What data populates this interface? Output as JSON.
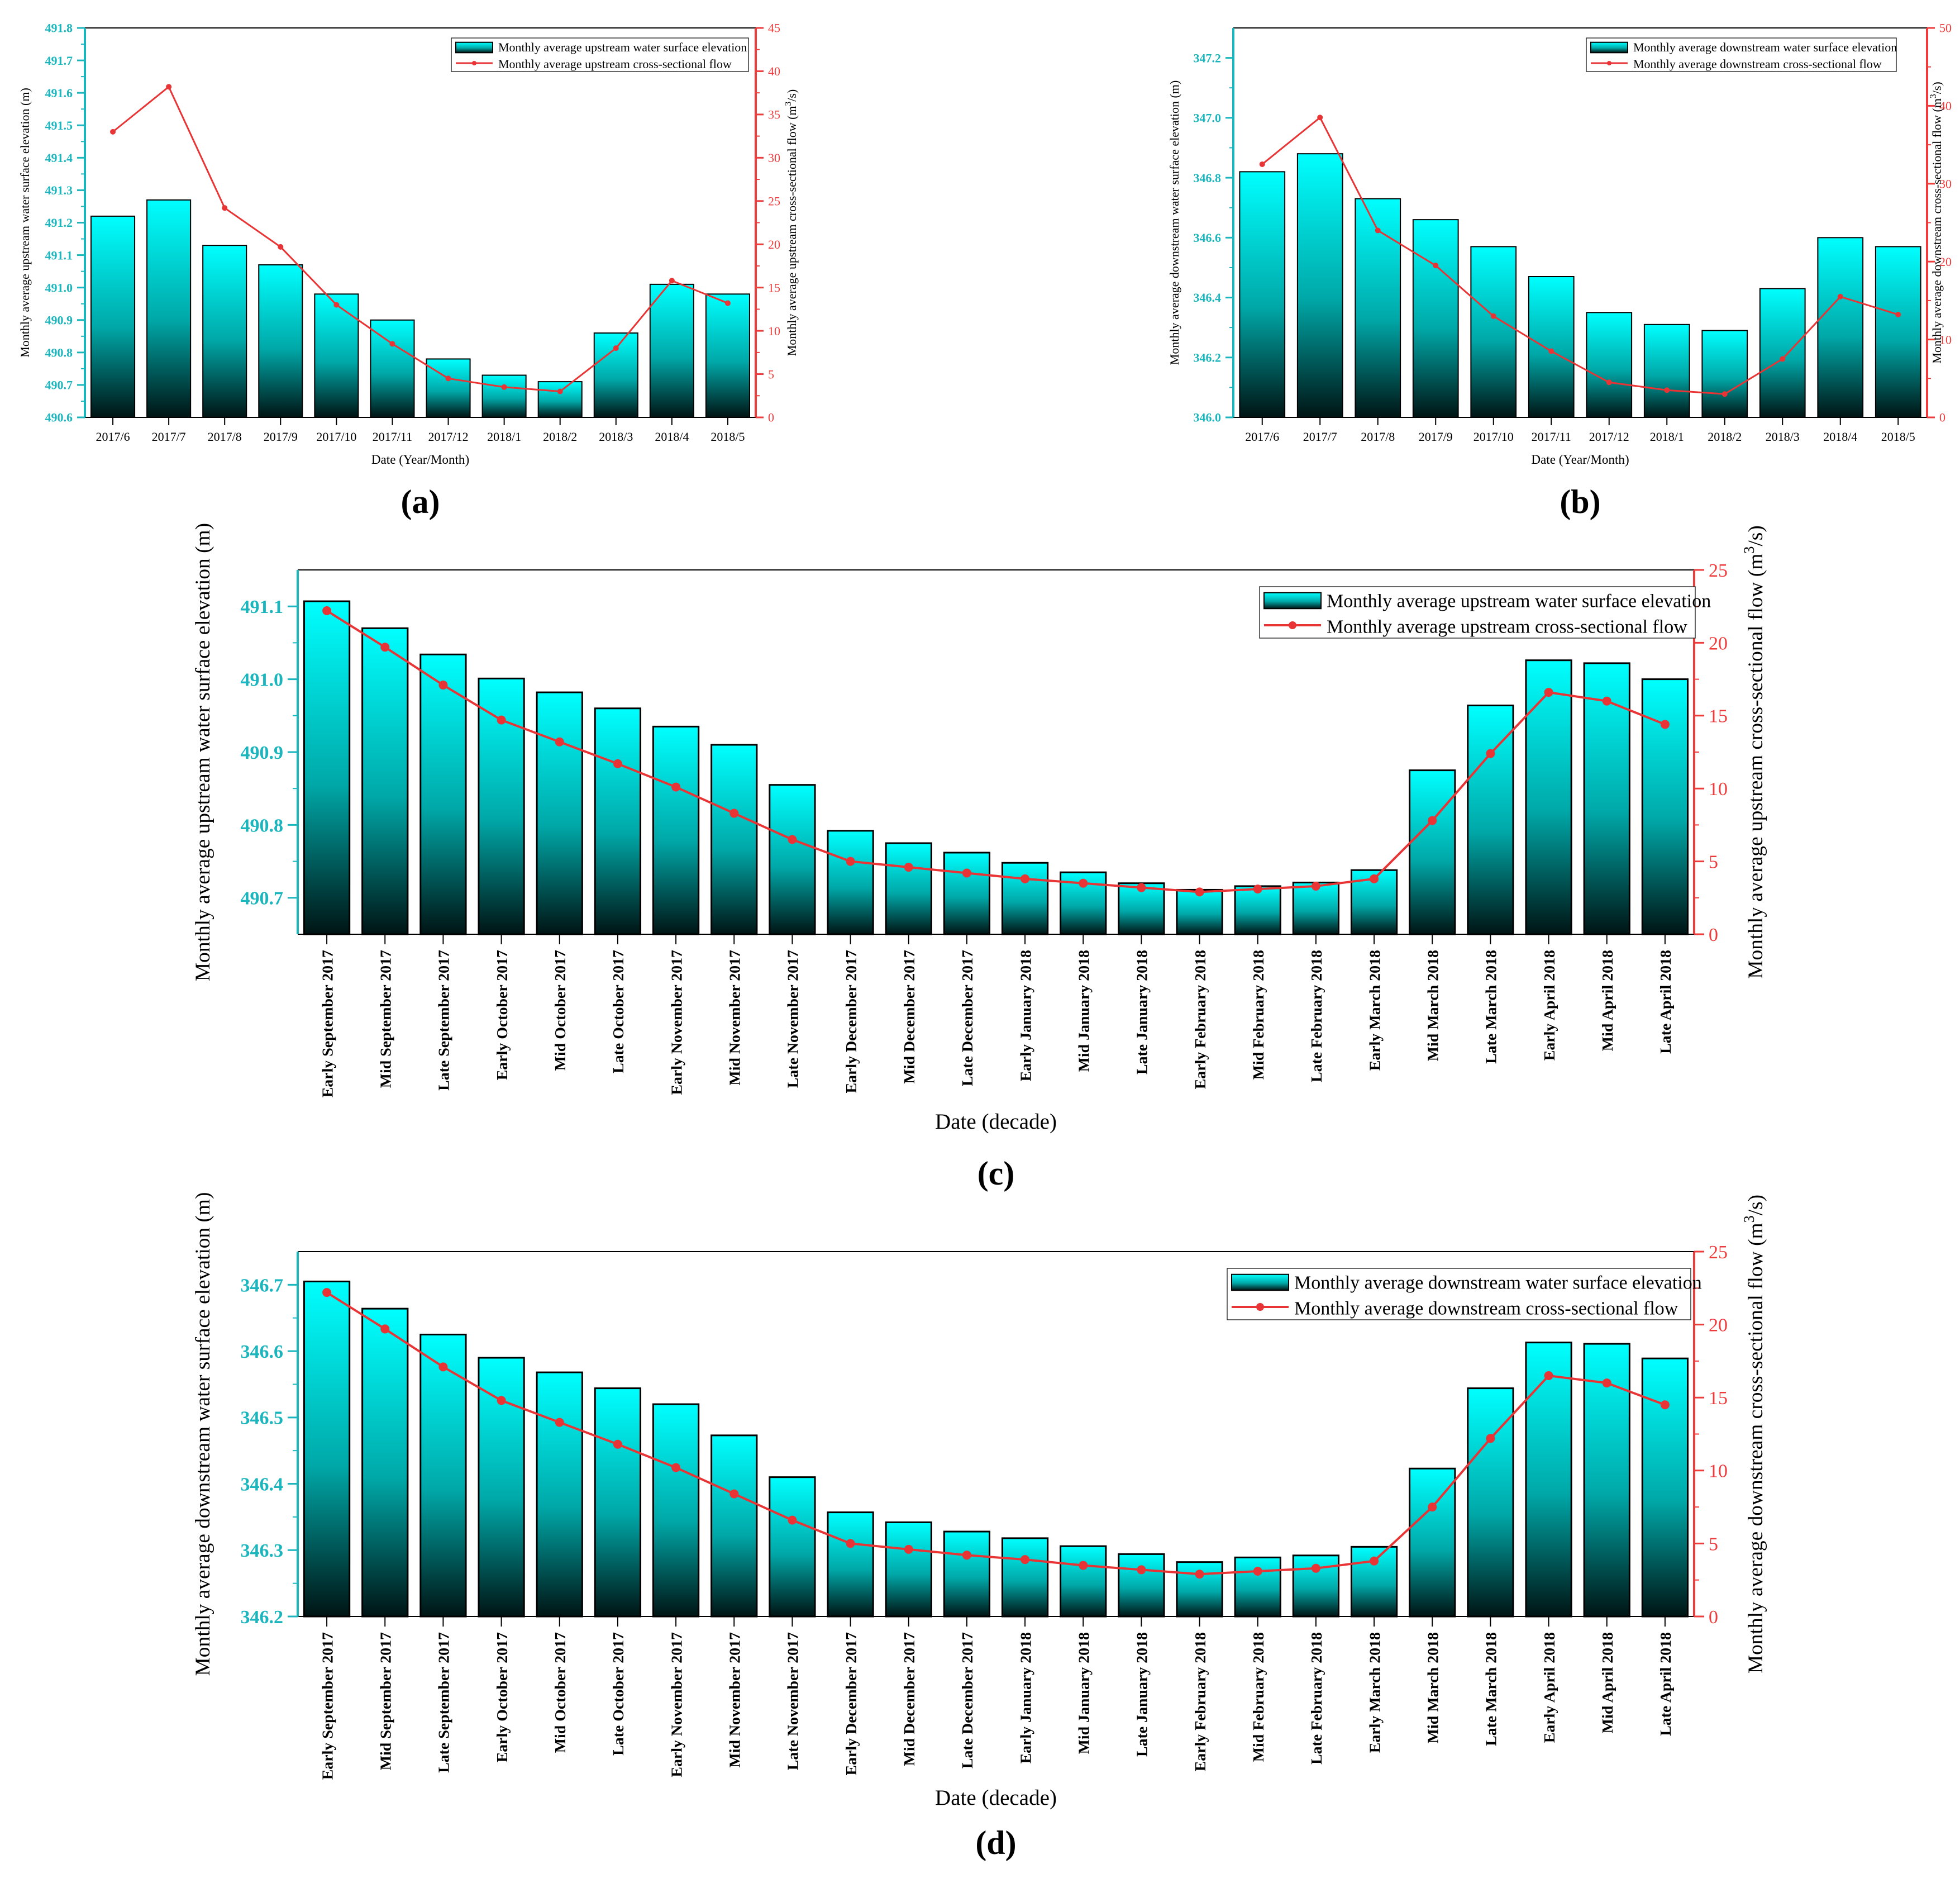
{
  "colors": {
    "left_axis": "#1ab5bd",
    "right_axis": "#ee3b3b",
    "bar_top": "#00ffff",
    "bar_bottom": "#001414",
    "line": "#e83434"
  },
  "panel_labels": [
    "(a)",
    "(b)",
    "(c)",
    "(d)"
  ],
  "chart_data": [
    {
      "type": "bar",
      "panel": "(a)",
      "xlabel": "Date (Year/Month)",
      "ylabel": "Monthly average upstream water surface elevation (m)",
      "y2label_pre": "Monthly average upstream cross-sectional flow (m",
      "y2label_sup": "3",
      "y2label_post": "/s)",
      "categories": [
        "2017/6",
        "2017/7",
        "2017/8",
        "2017/9",
        "2017/10",
        "2017/11",
        "2017/12",
        "2018/1",
        "2018/2",
        "2018/3",
        "2018/4",
        "2018/5"
      ],
      "series": [
        {
          "name": "Monthly average upstream water surface elevation",
          "type": "bar",
          "axis": "left",
          "values": [
            491.22,
            491.27,
            491.13,
            491.07,
            490.98,
            490.9,
            490.78,
            490.73,
            490.71,
            490.86,
            491.01,
            490.98
          ]
        },
        {
          "name": "Monthly average upstream cross-sectional flow",
          "type": "line",
          "axis": "right",
          "values": [
            33.0,
            38.2,
            24.2,
            19.7,
            13.0,
            8.5,
            4.5,
            3.5,
            3.0,
            8.0,
            15.8,
            13.2
          ]
        }
      ],
      "ylim": [
        490.6,
        491.8
      ],
      "yticks": [
        "490.6",
        "490.7",
        "490.8",
        "490.9",
        "491.0",
        "491.1",
        "491.2",
        "491.3",
        "491.4",
        "491.5",
        "491.6",
        "491.7",
        "491.8"
      ],
      "y2lim": [
        0,
        45
      ],
      "y2ticks": [
        "0",
        "5",
        "10",
        "15",
        "20",
        "25",
        "30",
        "35",
        "40",
        "45"
      ],
      "legend": "top-right"
    },
    {
      "type": "bar",
      "panel": "(b)",
      "xlabel": "Date (Year/Month)",
      "ylabel": "Monthly average downstream water surface elevation (m)",
      "y2label_pre": "Monthly average downstream cross-sectional flow (m",
      "y2label_sup": "3",
      "y2label_post": "/s)",
      "categories": [
        "2017/6",
        "2017/7",
        "2017/8",
        "2017/9",
        "2017/10",
        "2017/11",
        "2017/12",
        "2018/1",
        "2018/2",
        "2018/3",
        "2018/4",
        "2018/5"
      ],
      "series": [
        {
          "name": "Monthly average downstream water surface elevation",
          "type": "bar",
          "axis": "left",
          "values": [
            346.82,
            346.88,
            346.73,
            346.66,
            346.57,
            346.47,
            346.35,
            346.31,
            346.29,
            346.43,
            346.6,
            346.57
          ]
        },
        {
          "name": "Monthly average downstream cross-sectional flow",
          "type": "line",
          "axis": "right",
          "values": [
            32.5,
            38.5,
            24.0,
            19.5,
            13.0,
            8.5,
            4.5,
            3.5,
            3.0,
            7.5,
            15.5,
            13.2
          ]
        }
      ],
      "ylim": [
        346.0,
        347.3
      ],
      "yticks": [
        "346.0",
        "346.2",
        "346.4",
        "346.6",
        "346.8",
        "347.0",
        "347.2"
      ],
      "y2lim": [
        0,
        50
      ],
      "y2ticks": [
        "0",
        "10",
        "20",
        "30",
        "40",
        "50"
      ],
      "legend": "top-right"
    },
    {
      "type": "bar",
      "panel": "(c)",
      "xlabel": "Date (decade)",
      "ylabel": "Monthly average upstream water surface elevation (m)",
      "y2label_pre": "Monthly average upstream cross-sectional flow (m",
      "y2label_sup": "3",
      "y2label_post": "/s)",
      "categories": [
        "Early September 2017",
        "Mid September 2017",
        "Late September 2017",
        "Early October 2017",
        "Mid October 2017",
        "Late October 2017",
        "Early November 2017",
        "Mid November 2017",
        "Late November 2017",
        "Early December 2017",
        "Mid December 2017",
        "Late December 2017",
        "Early January 2018",
        "Mid January 2018",
        "Late January 2018",
        "Early February 2018",
        "Mid February 2018",
        "Late February 2018",
        "Early March 2018",
        "Mid March 2018",
        "Late March 2018",
        "Early April 2018",
        "Mid April 2018",
        "Late April 2018"
      ],
      "series": [
        {
          "name": "Monthly average upstream water surface elevation",
          "type": "bar",
          "axis": "left",
          "values": [
            491.107,
            491.07,
            491.034,
            491.001,
            490.982,
            490.96,
            490.935,
            490.91,
            490.855,
            490.792,
            490.775,
            490.762,
            490.748,
            490.735,
            490.72,
            490.711,
            490.716,
            490.721,
            490.738,
            490.875,
            490.964,
            491.026,
            491.022,
            491.0
          ]
        },
        {
          "name": "Monthly average upstream cross-sectional flow",
          "type": "line",
          "axis": "right",
          "values": [
            22.2,
            19.7,
            17.1,
            14.7,
            13.2,
            11.7,
            10.1,
            8.3,
            6.5,
            5.0,
            4.6,
            4.2,
            3.8,
            3.5,
            3.2,
            2.9,
            3.1,
            3.3,
            3.8,
            7.8,
            12.4,
            16.6,
            16.0,
            14.4
          ]
        }
      ],
      "ylim": [
        490.65,
        491.15
      ],
      "yticks": [
        "490.7",
        "490.8",
        "490.9",
        "491.0",
        "491.1"
      ],
      "y2lim": [
        0,
        25
      ],
      "y2ticks": [
        "0",
        "5",
        "10",
        "15",
        "20",
        "25"
      ],
      "legend": "top-right"
    },
    {
      "type": "bar",
      "panel": "(d)",
      "xlabel": "Date (decade)",
      "ylabel": "Monthly average downstream water surface elevation (m)",
      "y2label_pre": "Monthly average downstream cross-sectional flow (m",
      "y2label_sup": "3",
      "y2label_post": "/s)",
      "categories": [
        "Early September 2017",
        "Mid September 2017",
        "Late September 2017",
        "Early October 2017",
        "Mid October 2017",
        "Late October 2017",
        "Early November 2017",
        "Mid November 2017",
        "Late November 2017",
        "Early December 2017",
        "Mid December 2017",
        "Late December 2017",
        "Early January 2018",
        "Mid January 2018",
        "Late January 2018",
        "Early February 2018",
        "Mid February 2018",
        "Late February 2018",
        "Early March 2018",
        "Mid March 2018",
        "Late March 2018",
        "Early April 2018",
        "Mid April 2018",
        "Late April 2018"
      ],
      "series": [
        {
          "name": "Monthly average downstream water surface elevation",
          "type": "bar",
          "axis": "left",
          "values": [
            346.705,
            346.664,
            346.625,
            346.59,
            346.568,
            346.544,
            346.52,
            346.473,
            346.41,
            346.357,
            346.342,
            346.328,
            346.318,
            346.306,
            346.294,
            346.282,
            346.289,
            346.292,
            346.305,
            346.423,
            346.544,
            346.613,
            346.611,
            346.589
          ]
        },
        {
          "name": "Monthly average downstream cross-sectional flow",
          "type": "line",
          "axis": "right",
          "values": [
            22.2,
            19.7,
            17.1,
            14.8,
            13.3,
            11.8,
            10.2,
            8.4,
            6.6,
            5.0,
            4.6,
            4.2,
            3.9,
            3.5,
            3.2,
            2.9,
            3.1,
            3.3,
            3.8,
            7.5,
            12.2,
            16.5,
            16.0,
            14.5
          ]
        }
      ],
      "ylim": [
        346.2,
        346.75
      ],
      "yticks": [
        "346.2",
        "346.3",
        "346.4",
        "346.5",
        "346.6",
        "346.7"
      ],
      "y2lim": [
        0,
        25
      ],
      "y2ticks": [
        "0",
        "5",
        "10",
        "15",
        "20",
        "25"
      ],
      "legend": "top-right"
    }
  ]
}
